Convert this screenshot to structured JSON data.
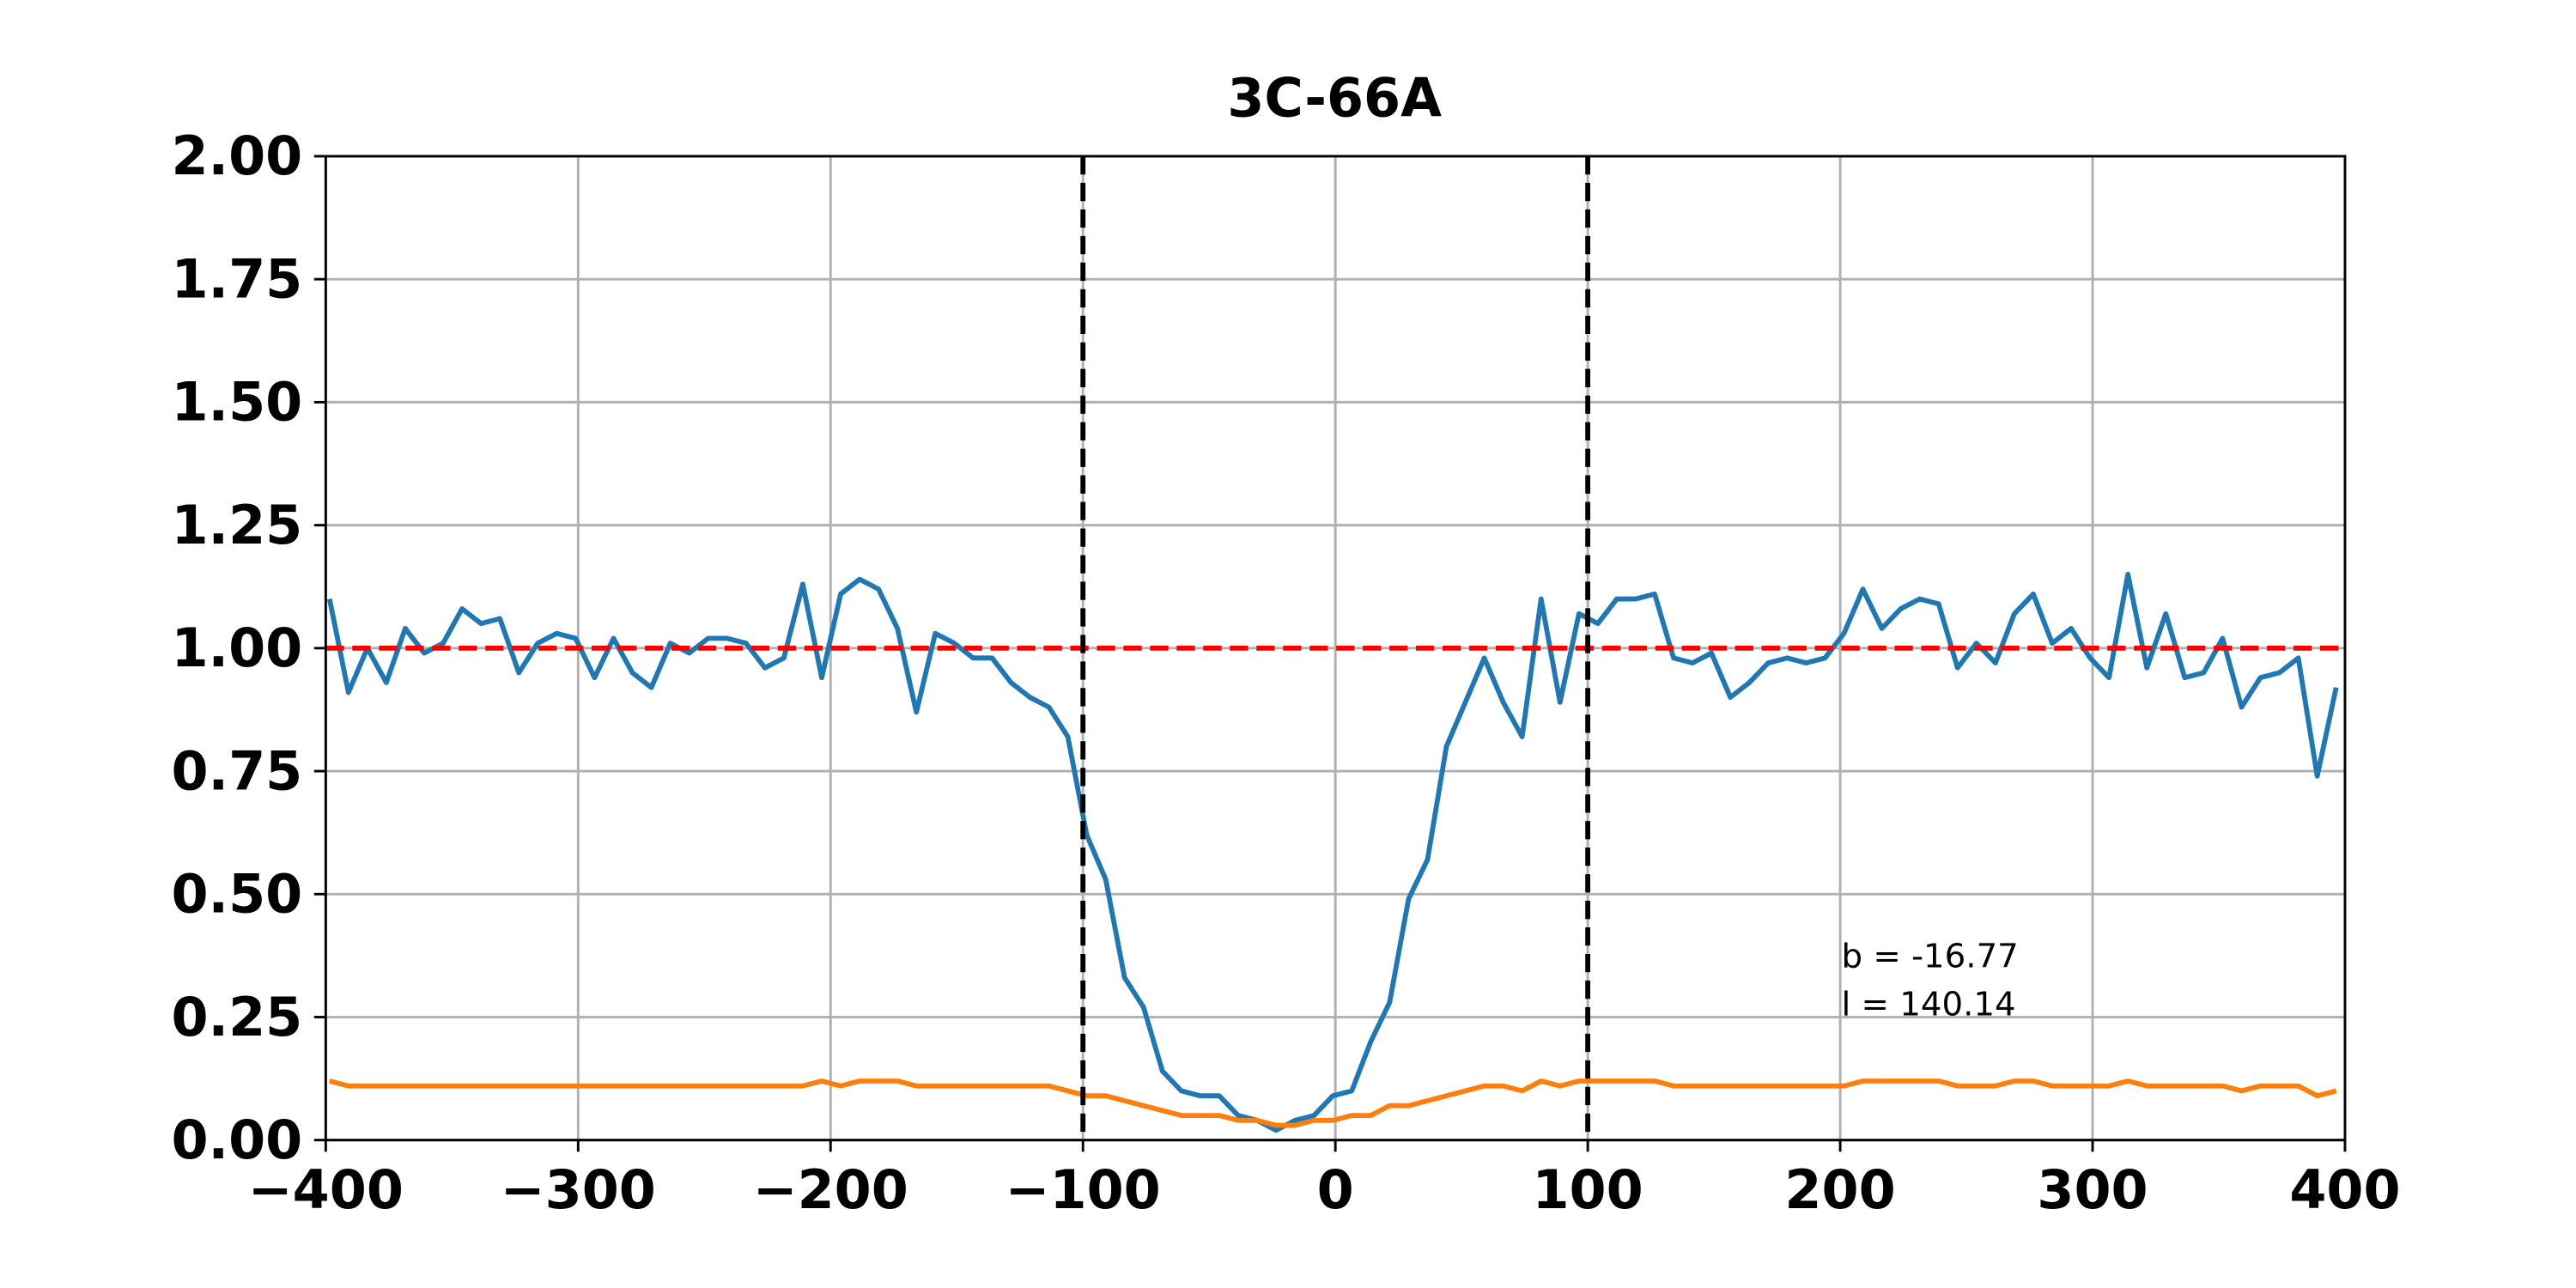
{
  "chart_data": {
    "type": "line",
    "title": "3C-66A",
    "x": [
      -398.5,
      -391,
      -383.5,
      -376,
      -368.5,
      -361,
      -353.5,
      -346,
      -338.5,
      -331,
      -323.5,
      -316,
      -308.5,
      -301,
      -293.5,
      -286,
      -278.5,
      -271,
      -263.5,
      -256,
      -248.5,
      -241,
      -233.5,
      -226,
      -218.5,
      -211,
      -203.5,
      -196,
      -188.5,
      -181,
      -173.5,
      -166,
      -158.5,
      -151,
      -143.5,
      -136,
      -128.5,
      -121,
      -113.5,
      -106,
      -98.5,
      -91,
      -83.5,
      -76,
      -68.5,
      -61,
      -53.5,
      -46,
      -38.5,
      -31,
      -23.5,
      -16,
      -8.5,
      -1,
      6.5,
      14,
      21.5,
      29,
      36.5,
      44,
      51.5,
      59,
      66.5,
      74,
      81.5,
      89,
      96.5,
      104,
      111.5,
      119,
      126.5,
      134,
      141.5,
      149,
      156.5,
      164,
      171.5,
      179,
      186.5,
      194,
      201.5,
      209,
      216.5,
      224,
      231.5,
      239,
      246.5,
      254,
      261.5,
      269,
      276.5,
      284,
      291.5,
      299,
      306.5,
      314,
      321.5,
      329,
      336.5,
      344,
      351.5,
      359,
      366.5,
      374,
      381.5,
      389,
      396.5
    ],
    "series": [
      {
        "color": "#1f77b4",
        "values": [
          1.1,
          0.91,
          1.0,
          0.93,
          1.04,
          0.99,
          1.01,
          1.08,
          1.05,
          1.06,
          0.95,
          1.01,
          1.03,
          1.02,
          0.94,
          1.02,
          0.95,
          0.92,
          1.01,
          0.99,
          1.02,
          1.02,
          1.01,
          0.96,
          0.98,
          1.13,
          0.94,
          1.11,
          1.14,
          1.12,
          1.04,
          0.87,
          1.03,
          1.01,
          0.98,
          0.98,
          0.93,
          0.9,
          0.88,
          0.82,
          0.62,
          0.53,
          0.33,
          0.27,
          0.14,
          0.1,
          0.09,
          0.09,
          0.05,
          0.04,
          0.02,
          0.04,
          0.05,
          0.09,
          0.1,
          0.2,
          0.28,
          0.49,
          0.57,
          0.8,
          0.89,
          0.98,
          0.89,
          0.82,
          1.1,
          0.89,
          1.07,
          1.05,
          1.1,
          1.1,
          1.11,
          0.98,
          0.97,
          0.99,
          0.9,
          0.93,
          0.97,
          0.98,
          0.97,
          0.98,
          1.03,
          1.12,
          1.04,
          1.08,
          1.1,
          1.09,
          0.96,
          1.01,
          0.97,
          1.07,
          1.11,
          1.01,
          1.04,
          0.98,
          0.94,
          1.15,
          0.96,
          1.07,
          0.94,
          0.95,
          1.02,
          0.88,
          0.94,
          0.95,
          0.98,
          0.74,
          0.92
        ]
      },
      {
        "color": "#ff7f0e",
        "values": [
          0.12,
          0.11,
          0.11,
          0.11,
          0.11,
          0.11,
          0.11,
          0.11,
          0.11,
          0.11,
          0.11,
          0.11,
          0.11,
          0.11,
          0.11,
          0.11,
          0.11,
          0.11,
          0.11,
          0.11,
          0.11,
          0.11,
          0.11,
          0.11,
          0.11,
          0.11,
          0.12,
          0.11,
          0.12,
          0.12,
          0.12,
          0.11,
          0.11,
          0.11,
          0.11,
          0.11,
          0.11,
          0.11,
          0.11,
          0.1,
          0.09,
          0.09,
          0.08,
          0.07,
          0.06,
          0.05,
          0.05,
          0.05,
          0.04,
          0.04,
          0.03,
          0.03,
          0.04,
          0.04,
          0.05,
          0.05,
          0.07,
          0.07,
          0.08,
          0.09,
          0.1,
          0.11,
          0.11,
          0.1,
          0.12,
          0.11,
          0.12,
          0.12,
          0.12,
          0.12,
          0.12,
          0.11,
          0.11,
          0.11,
          0.11,
          0.11,
          0.11,
          0.11,
          0.11,
          0.11,
          0.11,
          0.12,
          0.12,
          0.12,
          0.12,
          0.12,
          0.11,
          0.11,
          0.11,
          0.12,
          0.12,
          0.11,
          0.11,
          0.11,
          0.11,
          0.12,
          0.11,
          0.11,
          0.11,
          0.11,
          0.11,
          0.1,
          0.11,
          0.11,
          0.11,
          0.09,
          0.1
        ]
      }
    ],
    "vlines": [
      -100,
      100
    ],
    "vline_color": "#000000",
    "hline": 1,
    "hline_color": "#ff0000",
    "annotations": [
      "b = -16.77",
      "l = 140.14"
    ],
    "xlim": [
      -400,
      400
    ],
    "xticks": [
      {
        "value": -400,
        "label": "−400"
      },
      {
        "value": -300,
        "label": "−300"
      },
      {
        "value": -200,
        "label": "−200"
      },
      {
        "value": -100,
        "label": "−100"
      },
      0,
      100,
      200,
      300,
      400
    ],
    "ylim": [
      0,
      2
    ],
    "yticks": [
      {
        "value": 0,
        "label": "0.00"
      },
      {
        "value": 0.25,
        "label": "0.25"
      },
      {
        "value": 0.5,
        "label": "0.50"
      },
      {
        "value": 0.75,
        "label": "0.75"
      },
      {
        "value": 1,
        "label": "1.00"
      },
      {
        "value": 1.25,
        "label": "1.25"
      },
      {
        "value": 1.5,
        "label": "1.50"
      },
      {
        "value": 1.75,
        "label": "1.75"
      },
      {
        "value": 2,
        "label": "2.00"
      }
    ],
    "grid": true
  }
}
